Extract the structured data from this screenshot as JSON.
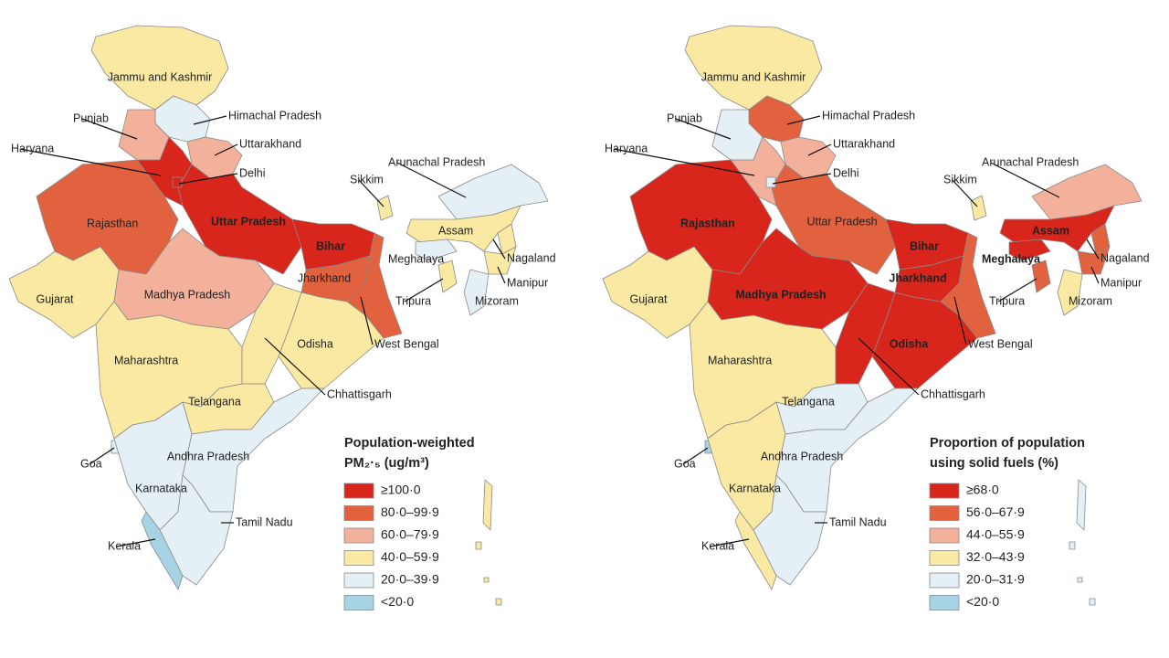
{
  "maps": [
    {
      "legend": {
        "title": [
          "Population-weighted",
          "PM₂·₅ (ug/m³)"
        ],
        "items": [
          {
            "label": "≥100·0",
            "color": "#d8261c"
          },
          {
            "label": "80·0–99·9",
            "color": "#e2613f"
          },
          {
            "label": "60·0–79·9",
            "color": "#f3b19c"
          },
          {
            "label": "40·0–59·9",
            "color": "#fae9a2"
          },
          {
            "label": "20·0–39·9",
            "color": "#e4eff6"
          },
          {
            "label": "<20·0",
            "color": "#a7d4e4"
          }
        ]
      },
      "islands_color": "#fae9a2",
      "states": [
        {
          "name": "Jammu and Kashmir",
          "color": "#fae9a2"
        },
        {
          "name": "Himachal Pradesh",
          "color": "#e4eff6"
        },
        {
          "name": "Punjab",
          "color": "#f3b19c"
        },
        {
          "name": "Uttarakhand",
          "color": "#f3b19c"
        },
        {
          "name": "Haryana",
          "color": "#d8261c"
        },
        {
          "name": "Delhi",
          "color": "#d8261c"
        },
        {
          "name": "Sikkim",
          "color": "#fae9a2"
        },
        {
          "name": "Arunachal Pradesh",
          "color": "#e4eff6"
        },
        {
          "name": "Rajasthan",
          "color": "#e2613f"
        },
        {
          "name": "Uttar Pradesh",
          "color": "#d8261c"
        },
        {
          "name": "Bihar",
          "color": "#d8261c"
        },
        {
          "name": "Assam",
          "color": "#fae9a2"
        },
        {
          "name": "Nagaland",
          "color": "#fae9a2"
        },
        {
          "name": "Meghalaya",
          "color": "#e4eff6"
        },
        {
          "name": "Manipur",
          "color": "#fae9a2"
        },
        {
          "name": "Gujarat",
          "color": "#fae9a2"
        },
        {
          "name": "Madhya Pradesh",
          "color": "#f3b19c"
        },
        {
          "name": "Jharkhand",
          "color": "#e2613f"
        },
        {
          "name": "Tripura",
          "color": "#fae9a2"
        },
        {
          "name": "Mizoram",
          "color": "#e4eff6"
        },
        {
          "name": "West Bengal",
          "color": "#e2613f"
        },
        {
          "name": "Odisha",
          "color": "#fae9a2"
        },
        {
          "name": "Maharashtra",
          "color": "#fae9a2"
        },
        {
          "name": "Chhattisgarh",
          "color": "#fae9a2"
        },
        {
          "name": "Telangana",
          "color": "#fae9a2"
        },
        {
          "name": "Goa",
          "color": "#e4eff6"
        },
        {
          "name": "Andhra Pradesh",
          "color": "#e4eff6"
        },
        {
          "name": "Karnataka",
          "color": "#e4eff6"
        },
        {
          "name": "Tamil Nadu",
          "color": "#e4eff6"
        },
        {
          "name": "Kerala",
          "color": "#a7d4e4"
        }
      ]
    },
    {
      "legend": {
        "title": [
          "Proportion of population",
          "using solid fuels (%)"
        ],
        "items": [
          {
            "label": "≥68·0",
            "color": "#d8261c"
          },
          {
            "label": "56·0–67·9",
            "color": "#e2613f"
          },
          {
            "label": "44·0–55·9",
            "color": "#f3b19c"
          },
          {
            "label": "32·0–43·9",
            "color": "#fae9a2"
          },
          {
            "label": "20·0–31·9",
            "color": "#e4eff6"
          },
          {
            "label": "<20·0",
            "color": "#a7d4e4"
          }
        ]
      },
      "islands_color": "#e4eff6",
      "states": [
        {
          "name": "Jammu and Kashmir",
          "color": "#fae9a2"
        },
        {
          "name": "Himachal Pradesh",
          "color": "#e2613f"
        },
        {
          "name": "Punjab",
          "color": "#e4eff6"
        },
        {
          "name": "Uttarakhand",
          "color": "#f3b19c"
        },
        {
          "name": "Haryana",
          "color": "#f3b19c"
        },
        {
          "name": "Delhi",
          "color": "#e4eff6"
        },
        {
          "name": "Sikkim",
          "color": "#fae9a2"
        },
        {
          "name": "Arunachal Pradesh",
          "color": "#f3b19c"
        },
        {
          "name": "Rajasthan",
          "color": "#d8261c"
        },
        {
          "name": "Uttar Pradesh",
          "color": "#e2613f"
        },
        {
          "name": "Bihar",
          "color": "#d8261c"
        },
        {
          "name": "Assam",
          "color": "#d8261c"
        },
        {
          "name": "Nagaland",
          "color": "#e2613f"
        },
        {
          "name": "Meghalaya",
          "color": "#d8261c"
        },
        {
          "name": "Manipur",
          "color": "#e2613f"
        },
        {
          "name": "Gujarat",
          "color": "#fae9a2"
        },
        {
          "name": "Madhya Pradesh",
          "color": "#d8261c"
        },
        {
          "name": "Jharkhand",
          "color": "#d8261c"
        },
        {
          "name": "Tripura",
          "color": "#e2613f"
        },
        {
          "name": "Mizoram",
          "color": "#fae9a2"
        },
        {
          "name": "West Bengal",
          "color": "#e2613f"
        },
        {
          "name": "Odisha",
          "color": "#d8261c"
        },
        {
          "name": "Maharashtra",
          "color": "#fae9a2"
        },
        {
          "name": "Chhattisgarh",
          "color": "#d8261c"
        },
        {
          "name": "Telangana",
          "color": "#e4eff6"
        },
        {
          "name": "Goa",
          "color": "#a7d4e4"
        },
        {
          "name": "Andhra Pradesh",
          "color": "#e4eff6"
        },
        {
          "name": "Karnataka",
          "color": "#fae9a2"
        },
        {
          "name": "Tamil Nadu",
          "color": "#e4eff6"
        },
        {
          "name": "Kerala",
          "color": "#fae9a2"
        }
      ]
    }
  ]
}
